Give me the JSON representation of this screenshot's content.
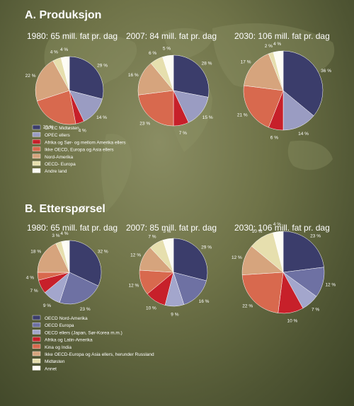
{
  "chart_data": [
    {
      "type": "pie",
      "section": "A. Produksjon",
      "legend": [
        "OPEC Midtøsten",
        "OPEC ellers",
        "Afrika og Sør- og mellom Amerika ellers",
        "Ikke OECD, Europa og Asia ellers",
        "Nord-Amerika",
        "OECD- Europa",
        "Andre land"
      ],
      "colors": [
        "#3b3d6b",
        "#9a9cc2",
        "#c7202a",
        "#d8694e",
        "#d6a47d",
        "#e6dfae",
        "#fdfcf4"
      ],
      "pies": [
        {
          "title": "1980: 65 mill. fat pr. dag",
          "values": [
            29,
            14,
            4,
            23,
            22,
            4,
            4
          ],
          "labels": [
            "29 %",
            "14 %",
            "4 %",
            "23 %",
            "22 %",
            "4 %",
            "4 %"
          ]
        },
        {
          "title": "2007: 84 mill. fat pr. dag",
          "values": [
            28,
            15,
            7,
            23,
            16,
            6,
            5
          ],
          "labels": [
            "28 %",
            "15 %",
            "7 %",
            "23 %",
            "16 %",
            "6 %",
            "5 %"
          ]
        },
        {
          "title": "2030: 106 mill. fat pr. dag",
          "values": [
            36,
            14,
            6,
            21,
            17,
            2,
            4
          ],
          "labels": [
            "36 %",
            "14 %",
            "6 %",
            "21 %",
            "17 %",
            "2 %",
            "4 %"
          ]
        }
      ]
    },
    {
      "type": "pie",
      "section": "B. Etterspørsel",
      "legend": [
        "OECD Nord-Amerika",
        "OECD Europa",
        "OECD ellers (Japan, Sør-Korea m.m.)",
        "Afrika og Latin-Amerika",
        "Kina og India",
        "Ikke OECD-Europa og Asia ellers, herunder Russland",
        "Midtøsten",
        "Annet"
      ],
      "colors": [
        "#3b3d6b",
        "#6e71a3",
        "#a3a6cc",
        "#c7202a",
        "#d8694e",
        "#d6a47d",
        "#e6dfae",
        "#fdfcf4"
      ],
      "pies": [
        {
          "title": "1980: 65 mill. fat pr. dag",
          "values": [
            32,
            23,
            9,
            7,
            4,
            18,
            3,
            4
          ],
          "labels": [
            "32 %",
            "23 %",
            "9 %",
            "7 %",
            "4 %",
            "18 %",
            "3 %",
            "4 %"
          ]
        },
        {
          "title": "2007: 85 mill. fat pr. dag",
          "values": [
            29,
            16,
            9,
            10,
            12,
            12,
            7,
            5
          ],
          "labels": [
            "29 %",
            "16 %",
            "9 %",
            "10 %",
            "12 %",
            "12 %",
            "7 %",
            "5 %"
          ]
        },
        {
          "title": "2030: 106 mill. fat pr. dag",
          "values": [
            23,
            12,
            7,
            10,
            22,
            12,
            10,
            4
          ],
          "labels": [
            "23 %",
            "12 %",
            "7 %",
            "10 %",
            "22 %",
            "12 %",
            "10 %",
            "4 %"
          ]
        }
      ]
    }
  ]
}
